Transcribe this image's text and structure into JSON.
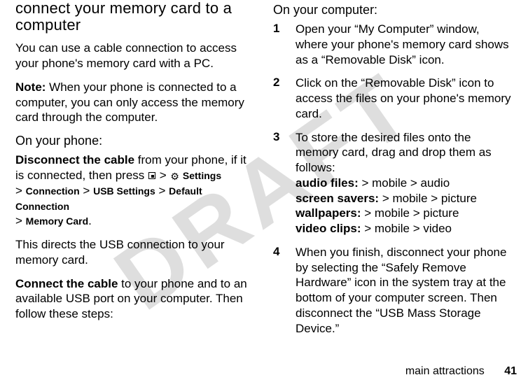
{
  "watermark": "DRAFT",
  "left": {
    "heading": "connect your memory card to a computer",
    "intro": "You can use a cable connection to access your phone's memory card with a PC.",
    "note_label": "Note:",
    "note_body": " When your phone is connected to a computer, you can only access the memory card through the computer.",
    "subhead": "On your phone:",
    "disc_label": "Disconnect the cable",
    "disc_body": " from your phone, if it is connected, then press ",
    "gt": ">",
    "menu_settings": " Settings",
    "menu_connection": "Connection",
    "menu_usb": "USB Settings",
    "menu_default": "Default Connection",
    "menu_memcard": "Memory Card",
    "period": ".",
    "after_menu": "This directs the USB connection to your memory card.",
    "conn_label": "Connect the cable",
    "conn_body": " to your phone and to an available USB port on your computer. Then follow these steps:"
  },
  "right": {
    "subhead": "On your computer:",
    "steps": [
      {
        "n": "1",
        "text": "Open your “My Computer” window, where your phone's memory card shows as a “Removable Disk” icon."
      },
      {
        "n": "2",
        "text": "Click on the “Removable Disk” icon to access the files on your phone's memory card."
      },
      {
        "n": "3",
        "p1": "To store the desired files onto the memory card, drag and drop them as follows:",
        "af_label": "audio files:",
        "af_path": " > mobile > audio",
        "ss_label": "screen savers:",
        "ss_path": " > mobile > picture",
        "wp_label": "wallpapers:",
        "wp_path": " > mobile > picture",
        "vc_label": "video clips:",
        "vc_path": " > mobile > video"
      },
      {
        "n": "4",
        "text": "When you finish, disconnect your phone by selecting the “Safely Remove Hardware” icon in the system tray at the bottom of your computer screen. Then disconnect the “USB Mass Storage Device.”"
      }
    ]
  },
  "footer": {
    "section": "main attractions",
    "page": "41"
  }
}
